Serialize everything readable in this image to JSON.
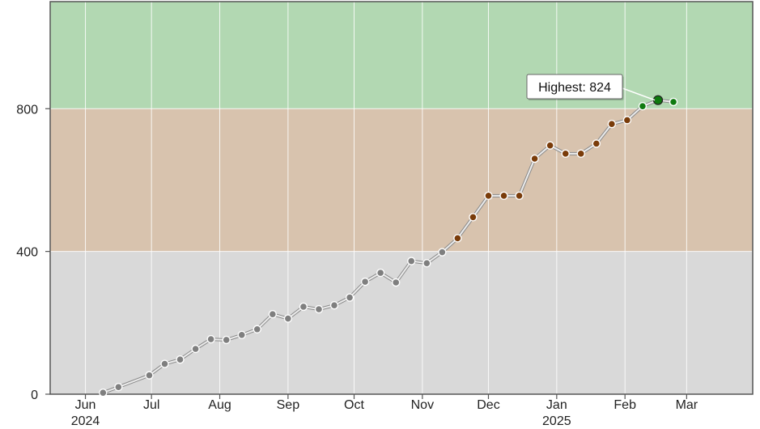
{
  "chart_data": {
    "type": "line",
    "title": "",
    "xlabel": "",
    "ylabel": "",
    "ylim": [
      0,
      1100
    ],
    "xlim": [
      "2024-05-16",
      "2025-03-31"
    ],
    "grid": true,
    "bands": [
      {
        "from": 0,
        "to": 400,
        "color": "#d9d9d9"
      },
      {
        "from": 400,
        "to": 800,
        "color": "#d8c3ae"
      },
      {
        "from": 800,
        "to": 1100,
        "color": "#b2d8b2"
      }
    ],
    "band_point_colors": [
      "#7f7f7f",
      "#7a3c0a",
      "#0f7a0f"
    ],
    "y_ticks": [
      {
        "value": 0,
        "label": "0"
      },
      {
        "value": 400,
        "label": "400"
      },
      {
        "value": 800,
        "label": "800"
      }
    ],
    "x_ticks": [
      {
        "date": "2024-06-01",
        "label": "Jun",
        "sublabel": "2024"
      },
      {
        "date": "2024-07-01",
        "label": "Jul",
        "sublabel": ""
      },
      {
        "date": "2024-08-01",
        "label": "Aug",
        "sublabel": ""
      },
      {
        "date": "2024-09-01",
        "label": "Sep",
        "sublabel": ""
      },
      {
        "date": "2024-10-01",
        "label": "Oct",
        "sublabel": ""
      },
      {
        "date": "2024-11-01",
        "label": "Nov",
        "sublabel": ""
      },
      {
        "date": "2024-12-01",
        "label": "Dec",
        "sublabel": ""
      },
      {
        "date": "2025-01-01",
        "label": "Jan",
        "sublabel": "2025"
      },
      {
        "date": "2025-02-01",
        "label": "Feb",
        "sublabel": ""
      },
      {
        "date": "2025-03-01",
        "label": "Mar",
        "sublabel": ""
      }
    ],
    "series": [
      {
        "points": [
          {
            "x": "2024-06-09",
            "y": 4
          },
          {
            "x": "2024-06-16",
            "y": 20
          },
          {
            "x": "2024-06-30",
            "y": 53
          },
          {
            "x": "2024-07-07",
            "y": 85
          },
          {
            "x": "2024-07-14",
            "y": 97
          },
          {
            "x": "2024-07-21",
            "y": 127
          },
          {
            "x": "2024-07-28",
            "y": 154
          },
          {
            "x": "2024-08-04",
            "y": 152
          },
          {
            "x": "2024-08-11",
            "y": 166
          },
          {
            "x": "2024-08-18",
            "y": 182
          },
          {
            "x": "2024-08-25",
            "y": 224
          },
          {
            "x": "2024-09-01",
            "y": 212
          },
          {
            "x": "2024-09-08",
            "y": 245
          },
          {
            "x": "2024-09-15",
            "y": 238
          },
          {
            "x": "2024-09-22",
            "y": 249
          },
          {
            "x": "2024-09-29",
            "y": 271
          },
          {
            "x": "2024-10-06",
            "y": 315
          },
          {
            "x": "2024-10-13",
            "y": 340
          },
          {
            "x": "2024-10-20",
            "y": 313
          },
          {
            "x": "2024-10-27",
            "y": 373
          },
          {
            "x": "2024-11-03",
            "y": 367
          },
          {
            "x": "2024-11-10",
            "y": 398
          },
          {
            "x": "2024-11-17",
            "y": 437
          },
          {
            "x": "2024-11-24",
            "y": 496
          },
          {
            "x": "2024-12-01",
            "y": 556
          },
          {
            "x": "2024-12-08",
            "y": 556
          },
          {
            "x": "2024-12-15",
            "y": 556
          },
          {
            "x": "2024-12-22",
            "y": 660
          },
          {
            "x": "2024-12-29",
            "y": 697
          },
          {
            "x": "2025-01-05",
            "y": 674
          },
          {
            "x": "2025-01-12",
            "y": 674
          },
          {
            "x": "2025-01-19",
            "y": 702
          },
          {
            "x": "2025-01-26",
            "y": 757
          },
          {
            "x": "2025-02-02",
            "y": 768
          },
          {
            "x": "2025-02-09",
            "y": 807
          },
          {
            "x": "2025-02-16",
            "y": 824
          },
          {
            "x": "2025-02-23",
            "y": 819
          }
        ]
      }
    ],
    "annotations": [
      {
        "text": "Highest: 824",
        "x": "2025-02-16",
        "y": 824
      }
    ]
  }
}
